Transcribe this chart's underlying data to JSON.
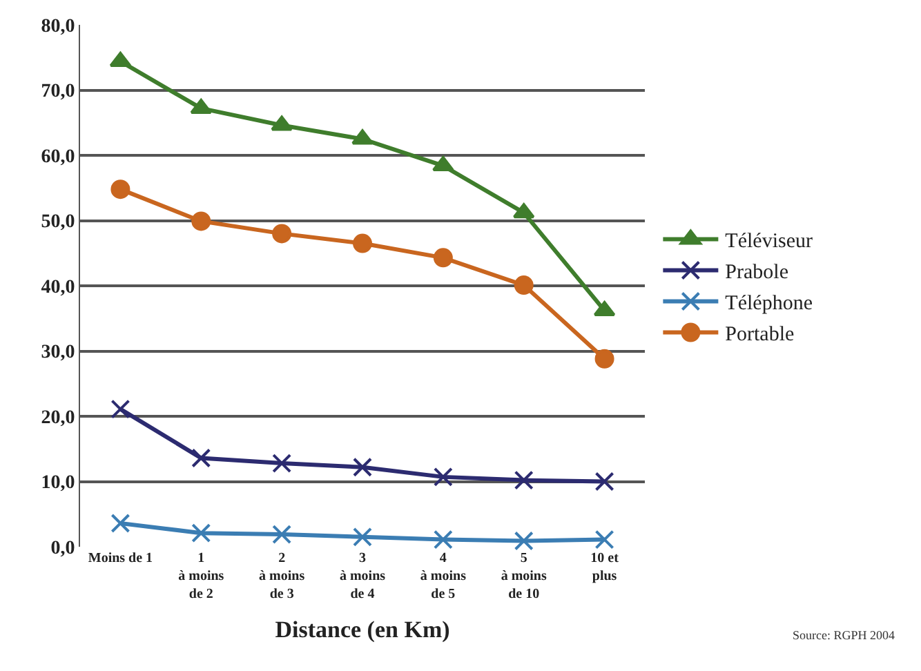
{
  "chart_data": {
    "type": "line",
    "xlabel": "Distance (en Km)",
    "categories": [
      "Moins de 1",
      "1\nà moins\nde 2",
      "2\nà moins\nde 3",
      "3\nà moins\nde 4",
      "4\nà moins\nde 5",
      "5\nà moins\nde 10",
      "10 et\nplus"
    ],
    "series": [
      {
        "name": "Téléviseur",
        "color": "#3f7d2c",
        "marker": "triangle",
        "values": [
          74.4,
          67.2,
          64.6,
          62.5,
          58.4,
          51.2,
          36.2
        ]
      },
      {
        "name": "Prabole",
        "color": "#2c2b70",
        "marker": "cross",
        "values": [
          21.1,
          13.6,
          12.8,
          12.2,
          10.7,
          10.2,
          10.0
        ]
      },
      {
        "name": "Téléphone",
        "color": "#3b7db3",
        "marker": "cross",
        "values": [
          3.6,
          2.1,
          1.9,
          1.5,
          1.1,
          0.9,
          1.1
        ]
      },
      {
        "name": "Portable",
        "color": "#c9661f",
        "marker": "circle",
        "values": [
          54.8,
          49.9,
          48.0,
          46.5,
          44.3,
          40.1,
          28.8
        ]
      }
    ],
    "ylim": [
      0,
      80
    ],
    "yticks": [
      {
        "value": 0,
        "label": "0,0"
      },
      {
        "value": 10,
        "label": "10,0"
      },
      {
        "value": 20,
        "label": "20,0"
      },
      {
        "value": 30,
        "label": "30,0"
      },
      {
        "value": 40,
        "label": "40,0"
      },
      {
        "value": 50,
        "label": "50,0"
      },
      {
        "value": 60,
        "label": "60,0"
      },
      {
        "value": 70,
        "label": "70,0"
      },
      {
        "value": 80,
        "label": "80,0"
      }
    ],
    "grid": "y",
    "legend": "right",
    "line_style": "solid",
    "annotations": [
      "Source: RGPH 2004"
    ]
  }
}
